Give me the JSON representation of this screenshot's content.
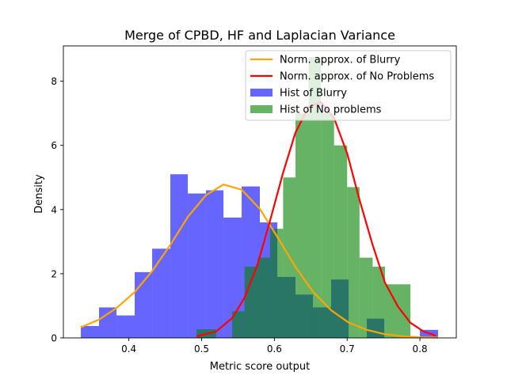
{
  "chart_data": {
    "type": "histogram",
    "title": "Merge of CPBD, HF and Laplacian Variance",
    "xlabel": "Metric score output",
    "ylabel": "Density",
    "xlim": [
      0.31,
      0.85
    ],
    "ylim": [
      0,
      9.1
    ],
    "xticks": [
      0.4,
      0.5,
      0.6,
      0.7,
      0.8
    ],
    "yticks": [
      0,
      2,
      4,
      6,
      8
    ],
    "legend_position": "top-right",
    "colors": {
      "blurry": "#0000ff",
      "no_problems": "#008000",
      "norm_blurry": "#ffa500",
      "norm_no_problems": "#ff0000"
    },
    "hist_blurry": {
      "label": "Hist of Blurry",
      "alpha": 0.6,
      "bins": [
        [
          0.334,
          0.359,
          0.37
        ],
        [
          0.359,
          0.383,
          0.95
        ],
        [
          0.383,
          0.408,
          0.7
        ],
        [
          0.408,
          0.432,
          2.05
        ],
        [
          0.432,
          0.457,
          2.78
        ],
        [
          0.457,
          0.481,
          5.1
        ],
        [
          0.481,
          0.506,
          4.5
        ],
        [
          0.506,
          0.53,
          4.6
        ],
        [
          0.53,
          0.555,
          3.75
        ],
        [
          0.555,
          0.58,
          4.72
        ],
        [
          0.58,
          0.604,
          3.6
        ],
        [
          0.604,
          0.629,
          1.9
        ],
        [
          0.629,
          0.653,
          1.35
        ],
        [
          0.653,
          0.678,
          0.95
        ],
        [
          0.678,
          0.702,
          1.82
        ],
        [
          0.702,
          0.727,
          0.0
        ],
        [
          0.727,
          0.751,
          0.6
        ],
        [
          0.751,
          0.776,
          0.0
        ],
        [
          0.776,
          0.8,
          0.0
        ],
        [
          0.8,
          0.825,
          0.25
        ]
      ]
    },
    "hist_no_problems": {
      "label": "Hist of No problems",
      "alpha": 0.6,
      "bins": [
        [
          0.493,
          0.52,
          0.27
        ],
        [
          0.52,
          0.542,
          0.0
        ],
        [
          0.542,
          0.559,
          0.83
        ],
        [
          0.559,
          0.577,
          2.22
        ],
        [
          0.577,
          0.594,
          2.5
        ],
        [
          0.594,
          0.612,
          3.4
        ],
        [
          0.612,
          0.629,
          5.0
        ],
        [
          0.629,
          0.647,
          7.0
        ],
        [
          0.647,
          0.664,
          8.75
        ],
        [
          0.664,
          0.682,
          7.0
        ],
        [
          0.682,
          0.7,
          6.0
        ],
        [
          0.7,
          0.717,
          4.7
        ],
        [
          0.717,
          0.735,
          2.5
        ],
        [
          0.735,
          0.752,
          2.22
        ],
        [
          0.752,
          0.77,
          1.67
        ],
        [
          0.77,
          0.787,
          1.67
        ]
      ]
    },
    "norm_blurry": {
      "label": "Norm. approx. of Blurry",
      "x": [
        0.334,
        0.359,
        0.383,
        0.408,
        0.432,
        0.457,
        0.481,
        0.506,
        0.53,
        0.555,
        0.58,
        0.604,
        0.629,
        0.653,
        0.678,
        0.702,
        0.727,
        0.751,
        0.776,
        0.8,
        0.825
      ],
      "y": [
        0.33,
        0.57,
        0.93,
        1.43,
        2.08,
        2.9,
        3.77,
        4.45,
        4.78,
        4.62,
        4.02,
        3.15,
        2.21,
        1.44,
        0.86,
        0.48,
        0.25,
        0.12,
        0.05,
        0.02,
        0.01
      ]
    },
    "norm_no_problems": {
      "label": "Norm. approx. of No Problems",
      "x": [
        0.493,
        0.52,
        0.542,
        0.559,
        0.577,
        0.594,
        0.612,
        0.629,
        0.647,
        0.664,
        0.682,
        0.7,
        0.717,
        0.735,
        0.752,
        0.77,
        0.787,
        0.805,
        0.822
      ],
      "y": [
        0.05,
        0.2,
        0.62,
        1.25,
        2.3,
        3.65,
        5.15,
        6.4,
        7.2,
        7.35,
        6.85,
        5.75,
        4.3,
        2.9,
        1.72,
        0.97,
        0.47,
        0.2,
        0.07
      ]
    }
  }
}
